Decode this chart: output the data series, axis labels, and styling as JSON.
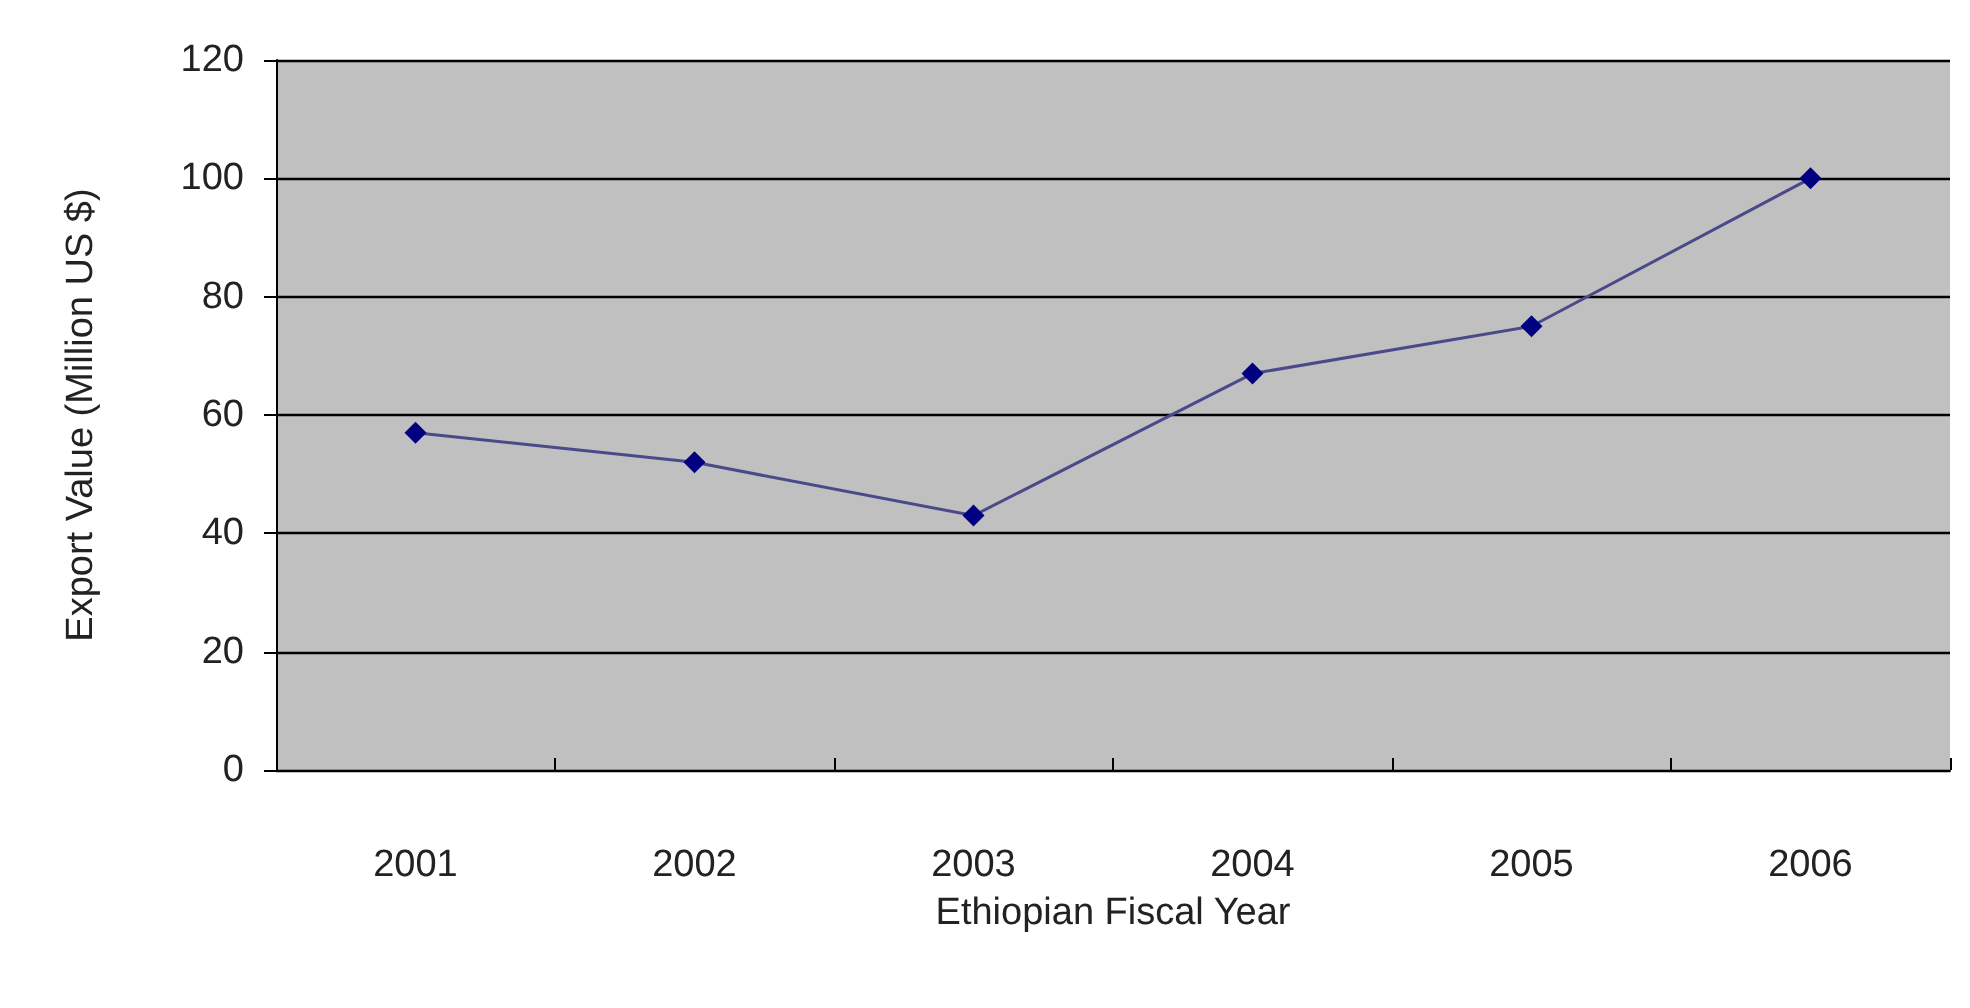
{
  "chart_data": {
    "type": "line",
    "xlabel": "Ethiopian Fiscal Year",
    "ylabel": "Export Value (Million US $)",
    "categories": [
      "2001",
      "2002",
      "2003",
      "2004",
      "2005",
      "2006"
    ],
    "series": [
      {
        "color": "#000080",
        "values": [
          57,
          52,
          43,
          67,
          75,
          100
        ]
      }
    ],
    "ylim": [
      0,
      120
    ],
    "yticks": [
      0,
      20,
      40,
      60,
      80,
      100,
      120
    ],
    "grid": "y",
    "marker": "diamond"
  }
}
